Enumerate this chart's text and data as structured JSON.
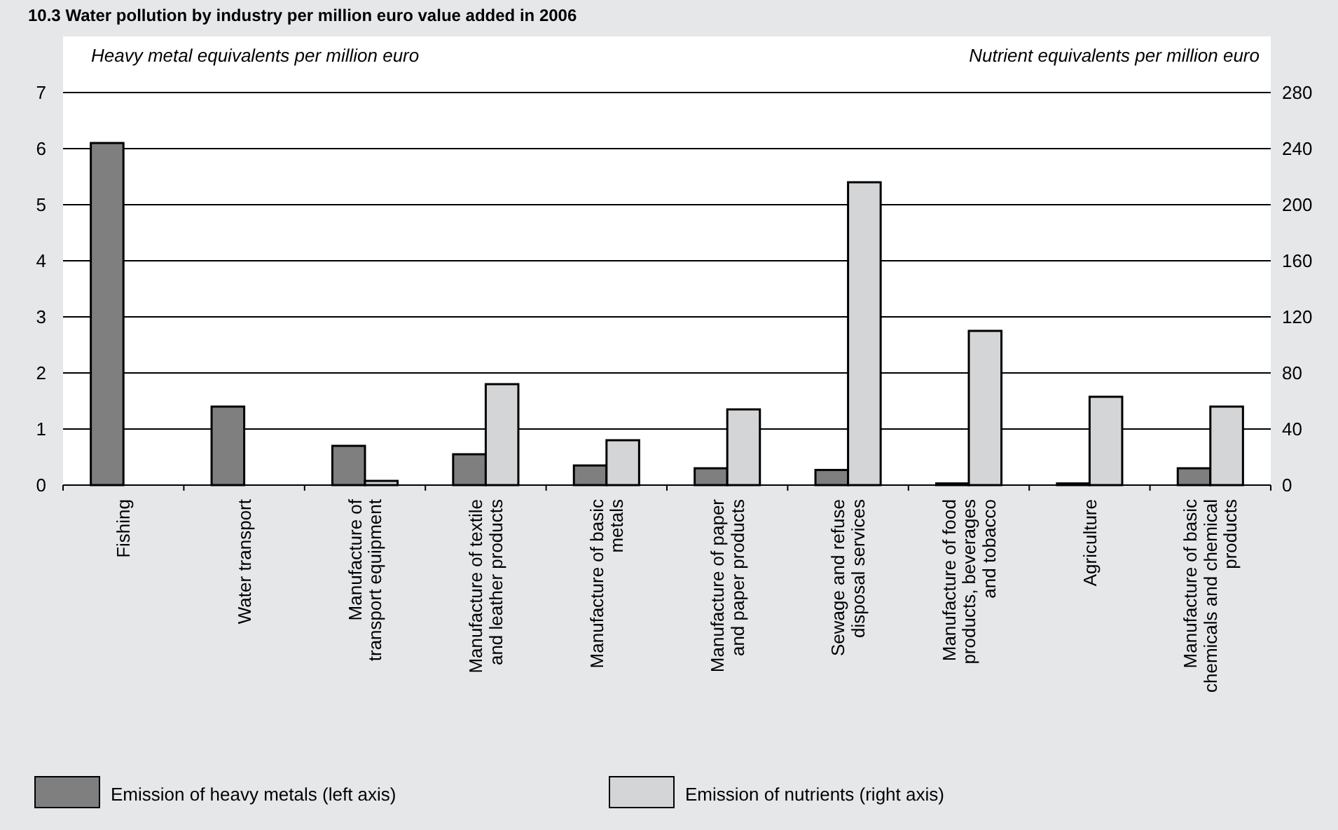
{
  "chart_data": {
    "type": "bar",
    "title": "10.3  Water pollution by industry per million euro value added in 2006",
    "ylabel": "Heavy metal equivalents per million euro",
    "y2label": "Nutrient equivalents per million euro",
    "categories": [
      "Fishing",
      "Water transport",
      "Manufacture of transport equipment",
      "Manufacture of textile and leather products",
      "Manufacture of basic metals",
      "Manufacture of paper and paper products",
      "Sewage and refuse disposal services",
      "Manufacture of food products, beverages and tobacco",
      "Agriculture",
      "Manufacture of basic chemicals and chemical products"
    ],
    "series": [
      {
        "name": "Emission of heavy metals (left axis)",
        "color": "#7f7f7f",
        "values": [
          6.1,
          1.4,
          0.7,
          0.55,
          0.35,
          0.3,
          0.27,
          0.03,
          0.03,
          0.3
        ]
      },
      {
        "name": "Emission of nutrients (right axis)",
        "color": "#d4d5d6",
        "axis": "y2",
        "values": [
          null,
          null,
          3,
          72,
          32,
          54,
          216,
          110,
          63,
          56
        ]
      }
    ],
    "ylim": [
      0,
      7
    ],
    "yticks": [
      0,
      1,
      2,
      3,
      4,
      5,
      6,
      7
    ],
    "y2lim": [
      0,
      280
    ],
    "y2ticks": [
      0,
      40,
      80,
      120,
      160,
      200,
      240,
      280
    ],
    "grid": "y",
    "legend": "bottom"
  }
}
